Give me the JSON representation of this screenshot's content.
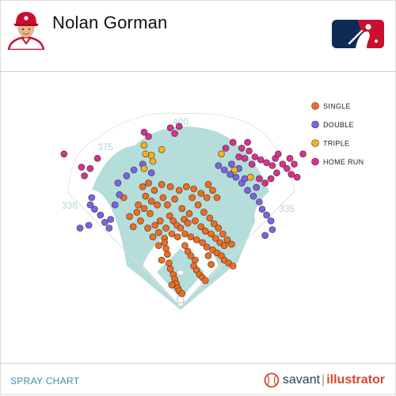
{
  "header": {
    "player_name": "Nolan Gorman",
    "avatar_icon": "player-headshot-icon",
    "logo_icon": "mlb-logo-icon"
  },
  "footer": {
    "title": "SPRAY CHART",
    "brand_savant": "savant",
    "brand_separator": "|",
    "brand_illustrator": "illustrator",
    "brand_icon": "baseball-icon"
  },
  "colors": {
    "single": "#f26c1f",
    "double": "#7b63e6",
    "triple": "#f7b31b",
    "home_run": "#d8318e",
    "grass": "#b5ddd9",
    "distance_label": "#b4d6d6"
  },
  "chart_data": {
    "type": "scatter",
    "title": "",
    "distance_labels": [
      "400",
      "375",
      "336",
      "335"
    ],
    "legend": {
      "position": "right",
      "entries": [
        "SINGLE",
        "DOUBLE",
        "TRIPLE",
        "HOME RUN"
      ]
    },
    "series": [
      {
        "name": "SINGLE",
        "points": [
          [
            -78,
            150
          ],
          [
            -60,
            130
          ],
          [
            -50,
            135
          ],
          [
            -42,
            128
          ],
          [
            -35,
            112
          ],
          [
            -28,
            118
          ],
          [
            -20,
            108
          ],
          [
            -15,
            125
          ],
          [
            -10,
            118
          ],
          [
            -5,
            112
          ],
          [
            0,
            108
          ],
          [
            5,
            120
          ],
          [
            10,
            115
          ],
          [
            -65,
            110
          ],
          [
            -55,
            118
          ],
          [
            -45,
            108
          ],
          [
            -38,
            96
          ],
          [
            -30,
            102
          ],
          [
            -22,
            94
          ],
          [
            -12,
            100
          ],
          [
            -4,
            96
          ],
          [
            6,
            100
          ],
          [
            14,
            96
          ],
          [
            22,
            92
          ],
          [
            30,
            88
          ],
          [
            36,
            82
          ],
          [
            44,
            78
          ],
          [
            50,
            74
          ],
          [
            56,
            70
          ],
          [
            60,
            64
          ],
          [
            66,
            60
          ],
          [
            72,
            56
          ],
          [
            -70,
            124
          ],
          [
            -58,
            140
          ],
          [
            -48,
            152
          ],
          [
            -40,
            145
          ],
          [
            -32,
            140
          ],
          [
            -24,
            150
          ],
          [
            -18,
            140
          ],
          [
            -8,
            148
          ],
          [
            2,
            135
          ],
          [
            12,
            128
          ],
          [
            20,
            118
          ],
          [
            28,
            110
          ],
          [
            34,
            104
          ],
          [
            42,
            100
          ],
          [
            48,
            94
          ],
          [
            54,
            88
          ],
          [
            60,
            84
          ],
          [
            16,
            150
          ],
          [
            24,
            140
          ],
          [
            32,
            130
          ],
          [
            40,
            122
          ],
          [
            46,
            114
          ],
          [
            52,
            108
          ],
          [
            58,
            100
          ],
          [
            -2,
            160
          ],
          [
            -14,
            165
          ],
          [
            -26,
            168
          ],
          [
            -36,
            160
          ],
          [
            -44,
            170
          ],
          [
            -52,
            165
          ],
          [
            8,
            165
          ],
          [
            18,
            162
          ],
          [
            28,
            156
          ],
          [
            36,
            150
          ],
          [
            38,
            168
          ],
          [
            44,
            160
          ],
          [
            50,
            150
          ],
          [
            64,
            92
          ],
          [
            70,
            86
          ],
          [
            -16,
            60
          ],
          [
            -14,
            52
          ],
          [
            -10,
            44
          ],
          [
            -8,
            38
          ],
          [
            -6,
            32
          ],
          [
            -4,
            26
          ],
          [
            -12,
            30
          ],
          [
            -2,
            22
          ],
          [
            2,
            18
          ],
          [
            -18,
            72
          ],
          [
            -20,
            80
          ],
          [
            -22,
            88
          ],
          [
            6,
            84
          ],
          [
            10,
            76
          ],
          [
            14,
            70
          ],
          [
            20,
            64
          ],
          [
            18,
            56
          ],
          [
            22,
            50
          ],
          [
            26,
            44
          ],
          [
            30,
            40
          ],
          [
            34,
            36
          ],
          [
            38,
            70
          ],
          [
            -26,
            64
          ],
          [
            42,
            58
          ],
          [
            -30,
            84
          ]
        ]
      },
      {
        "name": "DOUBLE",
        "points": [
          [
            -96,
            120
          ],
          [
            -110,
            126
          ],
          [
            -104,
            116
          ],
          [
            -98,
            108
          ],
          [
            -118,
            134
          ],
          [
            -90,
            140
          ],
          [
            -84,
            154
          ],
          [
            -74,
            180
          ],
          [
            -64,
            188
          ],
          [
            -52,
            196
          ],
          [
            -40,
            184
          ],
          [
            52,
            194
          ],
          [
            60,
            188
          ],
          [
            68,
            182
          ],
          [
            76,
            178
          ],
          [
            84,
            170
          ],
          [
            92,
            160
          ],
          [
            100,
            152
          ],
          [
            108,
            144
          ],
          [
            112,
            134
          ],
          [
            118,
            126
          ],
          [
            124,
            118
          ],
          [
            126,
            106
          ],
          [
            116,
            98
          ],
          [
            -124,
            140
          ],
          [
            -122,
            150
          ],
          [
            -138,
            108
          ],
          [
            -126,
            112
          ],
          [
            -86,
            170
          ],
          [
            70,
            196
          ],
          [
            80,
            190
          ],
          [
            88,
            176
          ],
          [
            104,
            164
          ]
        ]
      },
      {
        "name": "TRIPLE",
        "points": [
          [
            -50,
            222
          ],
          [
            -40,
            208
          ],
          [
            -48,
            210
          ],
          [
            -38,
            200
          ],
          [
            -26,
            216
          ],
          [
            -50,
            190
          ],
          [
            56,
            210
          ],
          [
            74,
            188
          ],
          [
            96,
            178
          ]
        ]
      },
      {
        "name": "HOME RUN",
        "points": [
          [
            -160,
            210
          ],
          [
            -136,
            192
          ],
          [
            -132,
            180
          ],
          [
            -124,
            190
          ],
          [
            -114,
            204
          ],
          [
            -50,
            240
          ],
          [
            -44,
            234
          ],
          [
            -2,
            248
          ],
          [
            -8,
            238
          ],
          [
            -14,
            246
          ],
          [
            62,
            218
          ],
          [
            72,
            226
          ],
          [
            84,
            218
          ],
          [
            94,
            214
          ],
          [
            102,
            206
          ],
          [
            110,
            202
          ],
          [
            118,
            198
          ],
          [
            126,
            194
          ],
          [
            130,
            204
          ],
          [
            134,
            210
          ],
          [
            140,
            196
          ],
          [
            146,
            190
          ],
          [
            152,
            182
          ],
          [
            160,
            178
          ],
          [
            132,
            184
          ],
          [
            124,
            176
          ],
          [
            116,
            170
          ],
          [
            108,
            176
          ],
          [
            98,
            196
          ],
          [
            88,
            204
          ],
          [
            80,
            206
          ],
          [
            92,
            226
          ],
          [
            150,
            204
          ],
          [
            156,
            196
          ],
          [
            168,
            210
          ]
        ]
      }
    ]
  }
}
